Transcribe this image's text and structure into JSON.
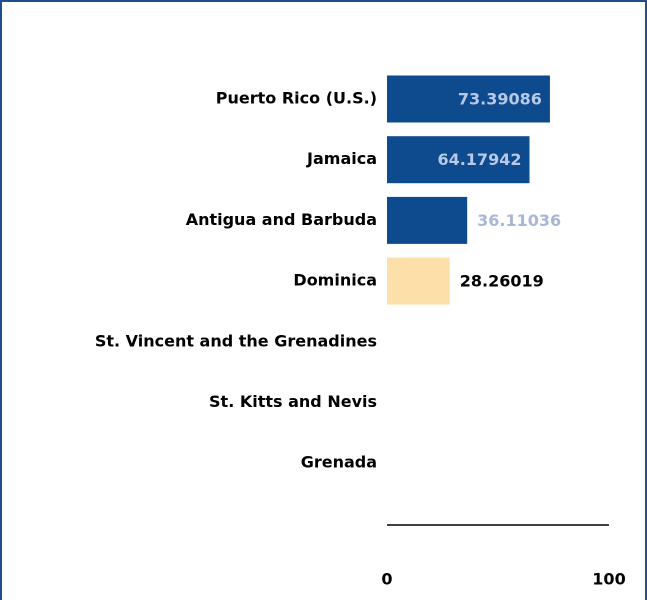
{
  "chart_data": {
    "type": "bar",
    "orientation": "horizontal",
    "categories": [
      "Puerto Rico (U.S.)",
      "Jamaica",
      "Antigua and Barbuda",
      "Dominica",
      "St. Vincent and the Grenadines",
      "St. Kitts and Nevis",
      "Grenada"
    ],
    "values": [
      73.39086,
      64.17942,
      36.11036,
      28.26019,
      null,
      null,
      null
    ],
    "colors": [
      "#0e4a8e",
      "#0e4a8e",
      "#0e4a8e",
      "#fddfa9",
      null,
      null,
      null
    ],
    "label_colors": [
      "#b7c9e6",
      "#b7c9e6",
      "#a9b7d6",
      "#000000",
      null,
      null,
      null
    ],
    "xlim": [
      0,
      100
    ],
    "xticks": [
      0,
      100
    ]
  }
}
